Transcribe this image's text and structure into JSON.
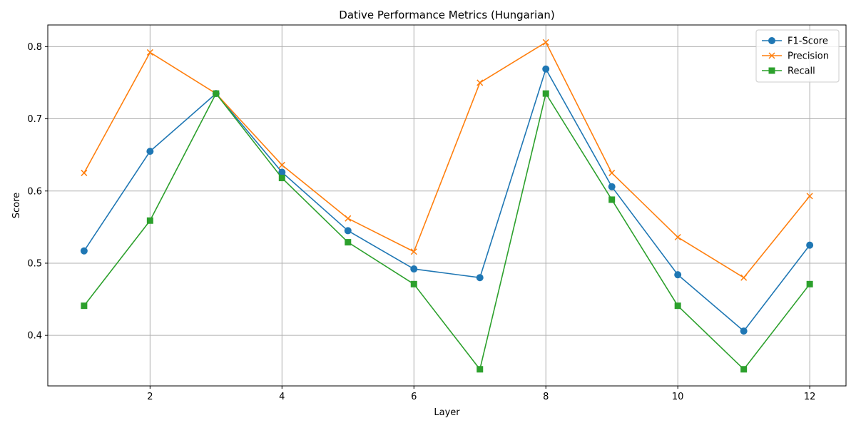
{
  "chart_data": {
    "type": "line",
    "title": "Dative Performance Metrics (Hungarian)",
    "xlabel": "Layer",
    "ylabel": "Score",
    "x": [
      1,
      2,
      3,
      4,
      5,
      6,
      7,
      8,
      9,
      10,
      11,
      12
    ],
    "xlim": [
      0.45,
      12.55
    ],
    "ylim": [
      0.33,
      0.83
    ],
    "xticks": [
      2,
      4,
      6,
      8,
      10,
      12
    ],
    "yticks": [
      0.4,
      0.5,
      0.6,
      0.7,
      0.8
    ],
    "xtick_labels": [
      "2",
      "4",
      "6",
      "8",
      "10",
      "12"
    ],
    "ytick_labels": [
      "0.4",
      "0.5",
      "0.6",
      "0.7",
      "0.8"
    ],
    "grid": true,
    "legend_position": "top-right",
    "series": [
      {
        "name": "F1-Score",
        "marker": "circle",
        "color": "#1f77b4",
        "values": [
          0.517,
          0.655,
          0.735,
          0.626,
          0.545,
          0.492,
          0.48,
          0.769,
          0.606,
          0.484,
          0.406,
          0.525
        ]
      },
      {
        "name": "Precision",
        "marker": "x",
        "color": "#ff7f0e",
        "values": [
          0.625,
          0.792,
          0.735,
          0.636,
          0.562,
          0.516,
          0.75,
          0.806,
          0.625,
          0.536,
          0.48,
          0.593
        ]
      },
      {
        "name": "Recall",
        "marker": "square",
        "color": "#2ca02c",
        "values": [
          0.441,
          0.559,
          0.735,
          0.618,
          0.529,
          0.471,
          0.353,
          0.735,
          0.588,
          0.441,
          0.353,
          0.471
        ]
      }
    ]
  }
}
